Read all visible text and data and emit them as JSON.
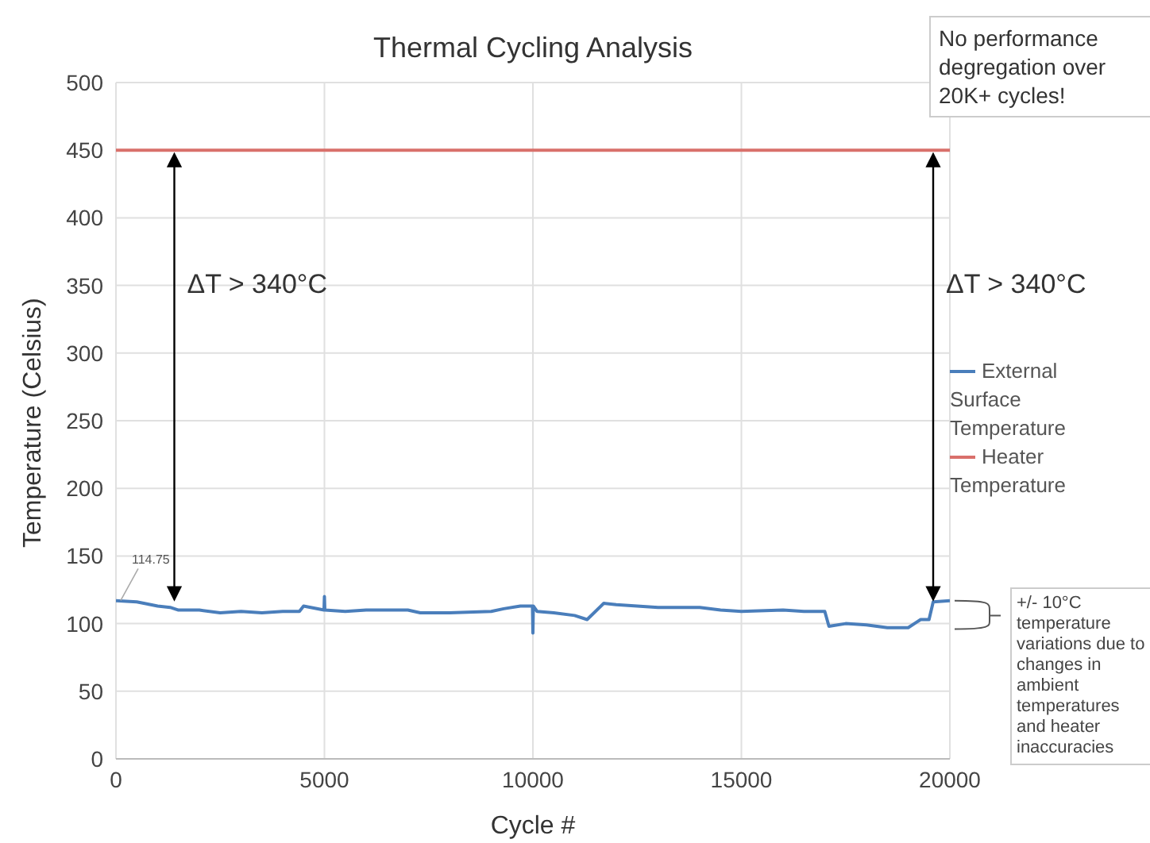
{
  "chart_data": {
    "type": "line",
    "title": "Thermal Cycling Analysis",
    "xlabel": "Cycle #",
    "ylabel": "Temperature (Celsius)",
    "xlim": [
      0,
      20000
    ],
    "xticks": [
      0,
      5000,
      10000,
      15000,
      20000
    ],
    "ylim": [
      0,
      500
    ],
    "yticks": [
      0,
      50,
      100,
      150,
      200,
      250,
      300,
      350,
      400,
      450,
      500
    ],
    "grid": true,
    "legend": "right",
    "marker": "none",
    "line_style": "solid",
    "series": [
      {
        "name": "External Surface Temperature",
        "color": "#4a7ebb",
        "x": [
          0,
          500,
          1000,
          1300,
          1500,
          2000,
          2500,
          3000,
          3500,
          4000,
          4400,
          4500,
          4990,
          5000,
          5010,
          5500,
          6000,
          7000,
          7300,
          8000,
          9000,
          9300,
          9700,
          9990,
          10000,
          10010,
          10100,
          10500,
          11000,
          11300,
          11500,
          11700,
          12000,
          13000,
          14000,
          14500,
          15000,
          16000,
          16500,
          17000,
          17100,
          17500,
          18000,
          18500,
          19000,
          19200,
          19300,
          19500,
          19600,
          20000
        ],
        "values": [
          117,
          116,
          113,
          112,
          110,
          110,
          108,
          109,
          108,
          109,
          109,
          113,
          110,
          120,
          110,
          109,
          110,
          110,
          108,
          108,
          109,
          111,
          113,
          113,
          93,
          113,
          109,
          108,
          106,
          103,
          109,
          115,
          114,
          112,
          112,
          110,
          109,
          110,
          109,
          109,
          98,
          100,
          99,
          97,
          97,
          101,
          103,
          103,
          116,
          117
        ]
      },
      {
        "name": "Heater Temperature",
        "color": "#d9706b",
        "x": [
          0,
          20000
        ],
        "values": [
          450,
          450
        ]
      }
    ],
    "annotations": [
      {
        "text": "114.75",
        "x": 0,
        "y": 114.75
      },
      "ΔT > 340°C",
      "ΔT > 340°C",
      "No performance degregation over 20K+ cycles!",
      "+/- 10°C temperature variations due to changes in ambient temperatures and heater inaccuracies"
    ]
  }
}
